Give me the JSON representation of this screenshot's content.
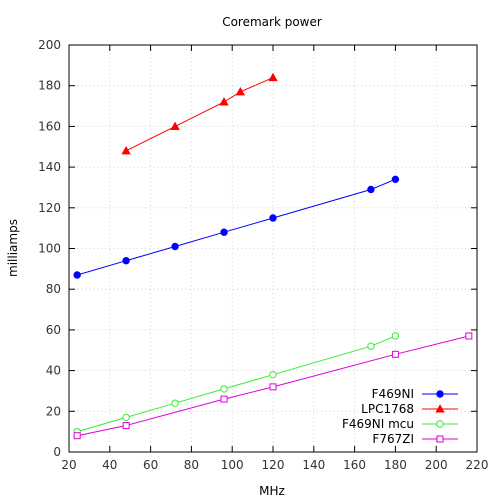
{
  "chart_data": {
    "type": "line",
    "title": "Coremark power",
    "xlabel": "MHz",
    "ylabel": "milliamps",
    "xlim": [
      20,
      220
    ],
    "ylim": [
      0,
      200
    ],
    "x_ticks": [
      20,
      40,
      60,
      80,
      100,
      120,
      140,
      160,
      180,
      200,
      220
    ],
    "y_ticks": [
      0,
      20,
      40,
      60,
      80,
      100,
      120,
      140,
      160,
      180,
      200
    ],
    "grid": true,
    "legend_position": "bottom-right",
    "series": [
      {
        "name": "F469NI",
        "color": "#0000ff",
        "marker": "filled-circle",
        "points": [
          [
            24,
            87
          ],
          [
            48,
            94
          ],
          [
            72,
            101
          ],
          [
            96,
            108
          ],
          [
            120,
            115
          ],
          [
            168,
            129
          ],
          [
            180,
            134
          ]
        ]
      },
      {
        "name": "LPC1768",
        "color": "#ff0000",
        "marker": "filled-triangle",
        "points": [
          [
            48,
            148
          ],
          [
            72,
            160
          ],
          [
            96,
            172
          ],
          [
            104,
            177
          ],
          [
            120,
            184
          ]
        ]
      },
      {
        "name": "F469NI mcu",
        "color": "#33ee33",
        "marker": "open-circle",
        "points": [
          [
            24,
            10
          ],
          [
            48,
            17
          ],
          [
            72,
            24
          ],
          [
            96,
            31
          ],
          [
            120,
            38
          ],
          [
            168,
            52
          ],
          [
            180,
            57
          ]
        ]
      },
      {
        "name": "F767ZI",
        "color": "#dd00dd",
        "marker": "open-square",
        "points": [
          [
            24,
            8
          ],
          [
            48,
            13
          ],
          [
            96,
            26
          ],
          [
            120,
            32
          ],
          [
            180,
            48
          ],
          [
            216,
            57
          ]
        ]
      }
    ]
  }
}
